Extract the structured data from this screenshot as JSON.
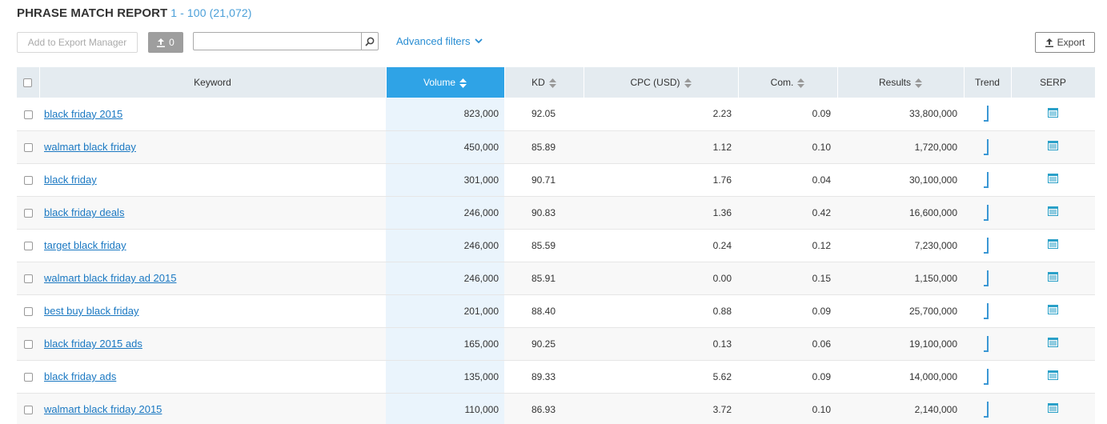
{
  "header": {
    "title": "PHRASE MATCH REPORT",
    "range": "1 - 100 (21,072)"
  },
  "toolbar": {
    "add_export_label": "Add to Export Manager",
    "count_label": "0",
    "search_placeholder": "",
    "advanced_filters_label": "Advanced filters",
    "export_label": "Export"
  },
  "table": {
    "columns": {
      "keyword": "Keyword",
      "volume": "Volume",
      "kd": "KD",
      "cpc": "CPC (USD)",
      "com": "Com.",
      "results": "Results",
      "trend": "Trend",
      "serp": "SERP"
    },
    "rows": [
      {
        "keyword": "black friday 2015",
        "volume": "823,000",
        "kd": "92.05",
        "cpc": "2.23",
        "com": "0.09",
        "results": "33,800,000"
      },
      {
        "keyword": "walmart black friday",
        "volume": "450,000",
        "kd": "85.89",
        "cpc": "1.12",
        "com": "0.10",
        "results": "1,720,000"
      },
      {
        "keyword": "black friday",
        "volume": "301,000",
        "kd": "90.71",
        "cpc": "1.76",
        "com": "0.04",
        "results": "30,100,000"
      },
      {
        "keyword": "black friday deals",
        "volume": "246,000",
        "kd": "90.83",
        "cpc": "1.36",
        "com": "0.42",
        "results": "16,600,000"
      },
      {
        "keyword": "target black friday",
        "volume": "246,000",
        "kd": "85.59",
        "cpc": "0.24",
        "com": "0.12",
        "results": "7,230,000"
      },
      {
        "keyword": "walmart black friday ad 2015",
        "volume": "246,000",
        "kd": "85.91",
        "cpc": "0.00",
        "com": "0.15",
        "results": "1,150,000"
      },
      {
        "keyword": "best buy black friday",
        "volume": "201,000",
        "kd": "88.40",
        "cpc": "0.88",
        "com": "0.09",
        "results": "25,700,000"
      },
      {
        "keyword": "black friday 2015 ads",
        "volume": "165,000",
        "kd": "90.25",
        "cpc": "0.13",
        "com": "0.06",
        "results": "19,100,000"
      },
      {
        "keyword": "black friday ads",
        "volume": "135,000",
        "kd": "89.33",
        "cpc": "5.62",
        "com": "0.09",
        "results": "14,000,000"
      },
      {
        "keyword": "walmart black friday 2015",
        "volume": "110,000",
        "kd": "86.93",
        "cpc": "3.72",
        "com": "0.10",
        "results": "2,140,000"
      }
    ]
  },
  "colors": {
    "accent": "#2fa3e6",
    "link": "#1a78c2",
    "header_bg": "#e4ebf0",
    "volume_col_bg": "#eaf4fc"
  },
  "icons": {
    "upload": "upload-icon",
    "search": "search-icon",
    "chevron": "chevron-down-icon",
    "sort": "sort-icon",
    "serp": "serp-list-icon",
    "trend": "trend-sparkline-icon"
  }
}
